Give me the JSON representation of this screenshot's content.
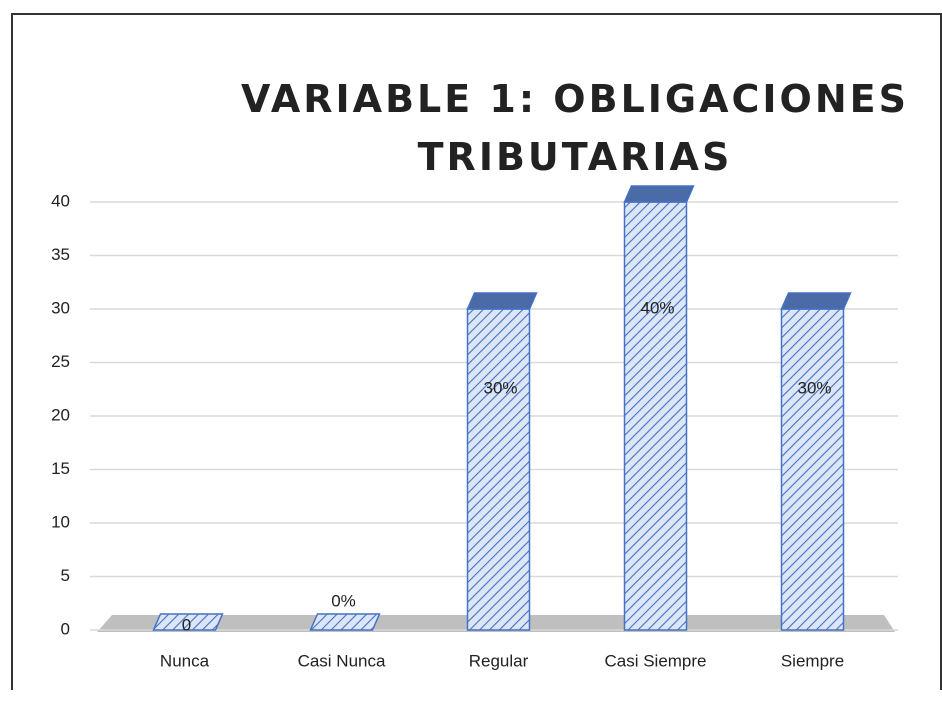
{
  "chart_data": {
    "type": "bar3d",
    "title": "VARIABLE 1: OBLIGACIONES TRIBUTARIAS",
    "categories": [
      "Nunca",
      "Casi Nunca",
      "Regular",
      "Casi Siempre",
      "Siempre"
    ],
    "values": [
      0,
      0,
      30,
      40,
      30
    ],
    "value_labels": [
      "0",
      "0%",
      "30%",
      "40%",
      "30%"
    ],
    "color": "#4472c4",
    "ylim": [
      0,
      40
    ],
    "yticks": [
      0,
      5,
      10,
      15,
      20,
      25,
      30,
      35,
      40
    ],
    "grid": true
  }
}
